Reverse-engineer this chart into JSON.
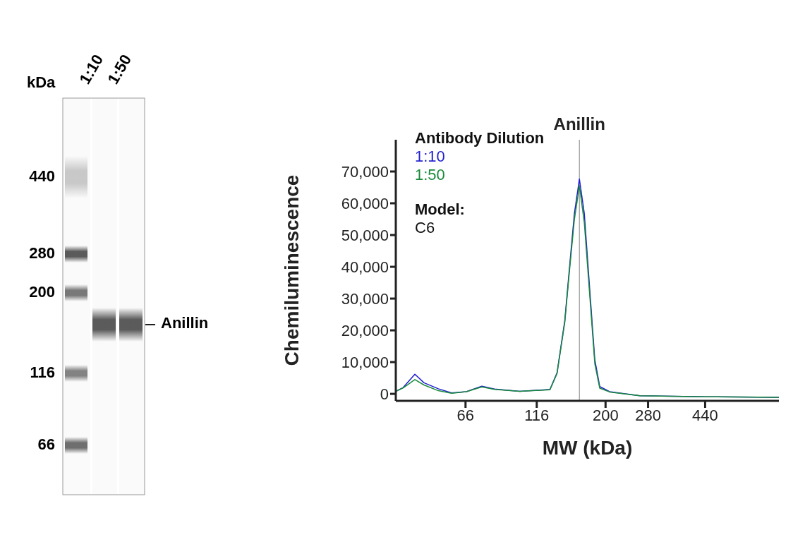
{
  "chart_data": [
    {
      "type": "other",
      "ylabel": "kDa",
      "categories": [
        "1:10",
        "1:50"
      ],
      "annotations": [
        "440",
        "280",
        "200",
        "116",
        "66",
        "Anillin"
      ]
    },
    {
      "type": "line",
      "xlabel": "MW (kDa)",
      "ylabel": "Chemiluminescence",
      "legend_title": "Antibody Dilution",
      "legend": "top left",
      "grid": false,
      "marker": "none",
      "line_style": "solid",
      "log": "x",
      "x": [
        38,
        40.3,
        44.2,
        47.5,
        53.2,
        59.1,
        66.4,
        75.1,
        83,
        101.4,
        128.8,
        136.2,
        144.8,
        150.4,
        156.3,
        162.6,
        169,
        176.8,
        183.7,
        191,
        206.5,
        262.4,
        440,
        789
      ],
      "series": [
        {
          "name": "1:10",
          "color": "#1f1fd0",
          "values": [
            800,
            2000,
            6200,
            3500,
            1600,
            300,
            700,
            2400,
            1500,
            800,
            1400,
            6600,
            23000,
            40000,
            56800,
            67600,
            56800,
            31700,
            10700,
            2300,
            700,
            -600,
            -900,
            -1100
          ]
        },
        {
          "name": "1:50",
          "color": "#1a8a3a",
          "values": [
            800,
            1900,
            4500,
            2800,
            1000,
            200,
            700,
            2200,
            1400,
            800,
            1300,
            6400,
            22500,
            39000,
            55000,
            65500,
            54000,
            30000,
            9500,
            1800,
            600,
            -600,
            -900,
            -1100
          ]
        }
      ],
      "xlim": [
        38,
        789
      ],
      "xticks": [
        66,
        116,
        200,
        280,
        440
      ],
      "ylim": [
        -2200,
        80000
      ],
      "yticks": [
        {
          "value": 0,
          "label": "0"
        },
        {
          "value": 10000,
          "label": "10,000"
        },
        {
          "value": 20000,
          "label": "20,000"
        },
        {
          "value": 30000,
          "label": "30,000"
        },
        {
          "value": 40000,
          "label": "40,000"
        },
        {
          "value": 50000,
          "label": "50,000"
        },
        {
          "value": 60000,
          "label": "60,000"
        },
        {
          "value": 70000,
          "label": "70,000"
        }
      ],
      "ref_lines": [
        {
          "axis": "x",
          "value": 162.6,
          "label": "Anillin",
          "color": "#999999"
        }
      ],
      "annotations": [
        "Model:",
        "C6"
      ]
    }
  ]
}
